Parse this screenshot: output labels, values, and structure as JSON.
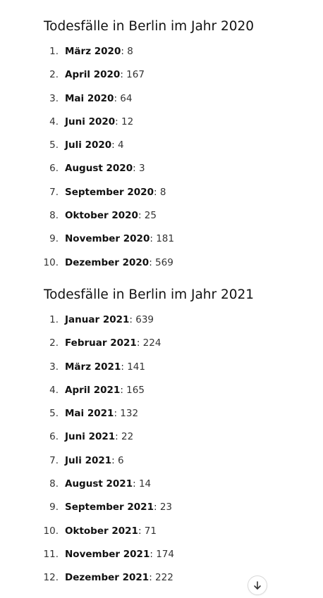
{
  "sections": [
    {
      "title": "Todesfälle in Berlin im Jahr 2020",
      "items": [
        {
          "num": "1.",
          "month": "März 2020",
          "value": "8"
        },
        {
          "num": "2.",
          "month": "April 2020",
          "value": "167"
        },
        {
          "num": "3.",
          "month": "Mai 2020",
          "value": "64"
        },
        {
          "num": "4.",
          "month": "Juni 2020",
          "value": "12"
        },
        {
          "num": "5.",
          "month": "Juli 2020",
          "value": "4"
        },
        {
          "num": "6.",
          "month": "August 2020",
          "value": "3"
        },
        {
          "num": "7.",
          "month": "September 2020",
          "value": "8"
        },
        {
          "num": "8.",
          "month": "Oktober 2020",
          "value": "25"
        },
        {
          "num": "9.",
          "month": "November 2020",
          "value": "181"
        },
        {
          "num": "10.",
          "month": "Dezember 2020",
          "value": "569"
        }
      ]
    },
    {
      "title": "Todesfälle in Berlin im Jahr 2021",
      "items": [
        {
          "num": "1.",
          "month": "Januar 2021",
          "value": "639"
        },
        {
          "num": "2.",
          "month": "Februar 2021",
          "value": "224"
        },
        {
          "num": "3.",
          "month": "März 2021",
          "value": "141"
        },
        {
          "num": "4.",
          "month": "April 2021",
          "value": "165"
        },
        {
          "num": "5.",
          "month": "Mai 2021",
          "value": "132"
        },
        {
          "num": "6.",
          "month": "Juni 2021",
          "value": "22"
        },
        {
          "num": "7.",
          "month": "Juli 2021",
          "value": "6"
        },
        {
          "num": "8.",
          "month": "August 2021",
          "value": "14"
        },
        {
          "num": "9.",
          "month": "September 2021",
          "value": "23"
        },
        {
          "num": "10.",
          "month": "Oktober 2021",
          "value": "71"
        },
        {
          "num": "11.",
          "month": "November 2021",
          "value": "174"
        },
        {
          "num": "12.",
          "month": "Dezember 2021",
          "value": "222"
        }
      ]
    }
  ],
  "scroll_button": {
    "icon": "arrow-down-icon"
  }
}
